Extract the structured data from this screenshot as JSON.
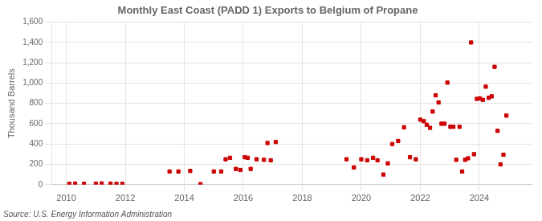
{
  "chart_data": {
    "type": "scatter",
    "title": "Monthly East Coast (PADD 1) Exports to Belgium of Propane",
    "ylabel": "Thousand Barrels",
    "annotations": [
      "Source: U.S. Energy Information Administration"
    ],
    "color": "#cc0000",
    "marker": "square",
    "grid": true,
    "xlim": [
      2009.5,
      2025.8
    ],
    "xticks": [
      2010,
      2012,
      2014,
      2016,
      2018,
      2020,
      2022,
      2024
    ],
    "ylim": [
      0,
      1600
    ],
    "yticks": [
      0,
      200,
      400,
      600,
      800,
      {
        "value": 1000,
        "label": "1,000"
      },
      {
        "value": 1200,
        "label": "1,200"
      },
      {
        "value": 1400,
        "label": "1,400"
      },
      {
        "value": 1600,
        "label": "1,600"
      }
    ],
    "x": [
      2010.1,
      2010.3,
      2010.6,
      2011.0,
      2011.2,
      2011.5,
      2011.7,
      2011.9,
      2013.5,
      2013.8,
      2014.2,
      2014.55,
      2015.0,
      2015.25,
      2015.4,
      2015.55,
      2015.75,
      2015.9,
      2016.05,
      2016.15,
      2016.25,
      2016.45,
      2016.7,
      2016.82,
      2016.93,
      2017.1,
      2019.5,
      2019.75,
      2020.0,
      2020.2,
      2020.4,
      2020.55,
      2020.75,
      2020.9,
      2021.05,
      2021.25,
      2021.45,
      2021.65,
      2021.85,
      2022.0,
      2022.12,
      2022.22,
      2022.33,
      2022.42,
      2022.52,
      2022.62,
      2022.72,
      2022.82,
      2022.92,
      2023.02,
      2023.12,
      2023.22,
      2023.33,
      2023.42,
      2023.52,
      2023.62,
      2023.72,
      2023.82,
      2023.92,
      2024.02,
      2024.12,
      2024.22,
      2024.32,
      2024.42,
      2024.52,
      2024.62,
      2024.72,
      2024.82,
      2024.92
    ],
    "values": [
      8,
      10,
      8,
      10,
      12,
      10,
      8,
      8,
      130,
      130,
      135,
      5,
      130,
      130,
      250,
      265,
      155,
      145,
      270,
      265,
      155,
      250,
      245,
      410,
      240,
      420,
      250,
      170,
      250,
      240,
      265,
      240,
      100,
      210,
      400,
      430,
      565,
      270,
      250,
      640,
      625,
      590,
      560,
      720,
      880,
      810,
      600,
      600,
      1005,
      570,
      570,
      245,
      570,
      130,
      245,
      260,
      1400,
      300,
      845,
      850,
      835,
      965,
      855,
      870,
      1160,
      530,
      200,
      295,
      680
    ]
  }
}
